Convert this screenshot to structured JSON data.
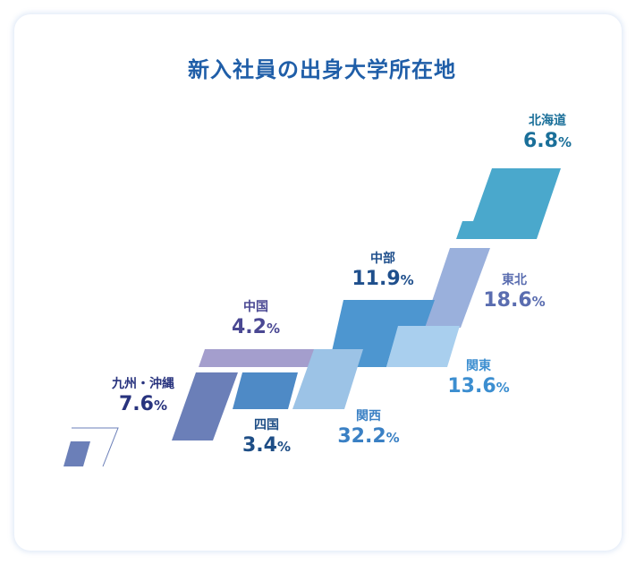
{
  "chart_data": {
    "type": "map",
    "title": "新入社員の出身大学所在地",
    "unit": "%",
    "regions": [
      {
        "key": "hokkaido",
        "name": "北海道",
        "value": "6.8",
        "color": "#4aa8cc",
        "text_color": "#1a6f99"
      },
      {
        "key": "tohoku",
        "name": "東北",
        "value": "18.6",
        "color": "#9ab0dc",
        "text_color": "#5a6db0"
      },
      {
        "key": "kanto",
        "name": "関東",
        "value": "13.6",
        "color": "#a9cfee",
        "text_color": "#3c8ed0"
      },
      {
        "key": "chubu",
        "name": "中部",
        "value": "11.9",
        "color": "#4d96d0",
        "text_color": "#1f4f8c"
      },
      {
        "key": "kansai",
        "name": "関西",
        "value": "32.2",
        "color": "#9cc3e6",
        "text_color": "#3a80c4"
      },
      {
        "key": "chugoku",
        "name": "中国",
        "value": "4.2",
        "color": "#a49ecd",
        "text_color": "#4a4893"
      },
      {
        "key": "shikoku",
        "name": "四国",
        "value": "3.4",
        "color": "#4e8ac6",
        "text_color": "#1e4e86"
      },
      {
        "key": "kyushu",
        "name": "九州・沖縄",
        "value": "7.6",
        "color": "#6b7fb8",
        "text_color": "#28337e"
      }
    ]
  }
}
